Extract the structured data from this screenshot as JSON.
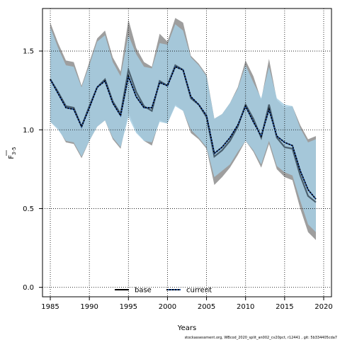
{
  "chart_data": {
    "type": "line",
    "xlabel": "Years",
    "ylabel_main": "F",
    "ylabel_sub": "3-5",
    "xlim": [
      1984,
      2021
    ],
    "ylim": [
      -0.06,
      1.77
    ],
    "xticks": [
      1985,
      1990,
      1995,
      2000,
      2005,
      2010,
      2015,
      2020
    ],
    "yticks": [
      0.0,
      0.5,
      1.0,
      1.5
    ],
    "ytick_labels": [
      "0.0",
      "0.5",
      "1.0",
      "1.5"
    ],
    "grid": true,
    "legend_position": "bottom-center",
    "x": [
      1985,
      1986,
      1987,
      1988,
      1989,
      1990,
      1991,
      1992,
      1993,
      1994,
      1995,
      1996,
      1997,
      1998,
      1999,
      2000,
      2001,
      2002,
      2003,
      2004,
      2005,
      2006,
      2007,
      2008,
      2009,
      2010,
      2011,
      2012,
      2013,
      2014,
      2015,
      2016,
      2017,
      2018,
      2019
    ],
    "series": [
      {
        "name": "base",
        "color": "#000000",
        "values": [
          1.32,
          1.24,
          1.15,
          1.14,
          1.02,
          1.15,
          1.27,
          1.32,
          1.18,
          1.1,
          1.38,
          1.24,
          1.15,
          1.12,
          1.31,
          1.28,
          1.41,
          1.38,
          1.2,
          1.16,
          1.08,
          0.83,
          0.87,
          0.93,
          1.02,
          1.16,
          1.07,
          0.95,
          1.16,
          0.95,
          0.89,
          0.88,
          0.71,
          0.58,
          0.54
        ],
        "lower": [
          1.05,
          1.01,
          0.92,
          0.91,
          0.82,
          0.93,
          1.02,
          1.06,
          0.94,
          0.88,
          1.11,
          0.99,
          0.93,
          0.9,
          1.06,
          1.04,
          1.16,
          1.12,
          0.98,
          0.94,
          0.88,
          0.65,
          0.7,
          0.76,
          0.84,
          0.93,
          0.86,
          0.76,
          0.91,
          0.75,
          0.7,
          0.68,
          0.5,
          0.35,
          0.3
        ],
        "upper": [
          1.68,
          1.55,
          1.44,
          1.43,
          1.28,
          1.43,
          1.58,
          1.63,
          1.46,
          1.37,
          1.7,
          1.52,
          1.43,
          1.4,
          1.61,
          1.56,
          1.71,
          1.68,
          1.47,
          1.42,
          1.35,
          1.07,
          1.1,
          1.17,
          1.27,
          1.44,
          1.34,
          1.19,
          1.45,
          1.19,
          1.14,
          1.15,
          1.03,
          0.94,
          0.96
        ]
      },
      {
        "name": "current",
        "color": "#1f4e9c",
        "values": [
          1.32,
          1.23,
          1.14,
          1.13,
          1.02,
          1.14,
          1.27,
          1.31,
          1.17,
          1.09,
          1.34,
          1.21,
          1.14,
          1.14,
          1.3,
          1.28,
          1.4,
          1.38,
          1.21,
          1.16,
          1.09,
          0.85,
          0.89,
          0.95,
          1.03,
          1.15,
          1.05,
          0.96,
          1.13,
          0.96,
          0.92,
          0.9,
          0.74,
          0.62,
          0.56
        ],
        "lower": [
          1.05,
          1.0,
          0.93,
          0.92,
          0.83,
          0.93,
          1.02,
          1.06,
          0.95,
          0.89,
          1.08,
          0.98,
          0.93,
          0.92,
          1.05,
          1.04,
          1.15,
          1.12,
          1.0,
          0.95,
          0.89,
          0.7,
          0.74,
          0.78,
          0.86,
          0.93,
          0.87,
          0.78,
          0.93,
          0.77,
          0.73,
          0.71,
          0.55,
          0.4,
          0.35
        ],
        "upper": [
          1.65,
          1.52,
          1.41,
          1.4,
          1.27,
          1.41,
          1.56,
          1.6,
          1.43,
          1.34,
          1.6,
          1.48,
          1.4,
          1.39,
          1.55,
          1.54,
          1.67,
          1.63,
          1.46,
          1.41,
          1.34,
          1.07,
          1.1,
          1.17,
          1.26,
          1.41,
          1.3,
          1.2,
          1.4,
          1.2,
          1.16,
          1.15,
          1.01,
          0.92,
          0.94
        ]
      }
    ],
    "band_colors": {
      "base": "#9e9e9e",
      "current": "#a6cee3"
    },
    "footer_text": "stockassessment.org, WBcod_2020_split_an002_cv20pct, r12441 , git: 5b334405cda7"
  }
}
